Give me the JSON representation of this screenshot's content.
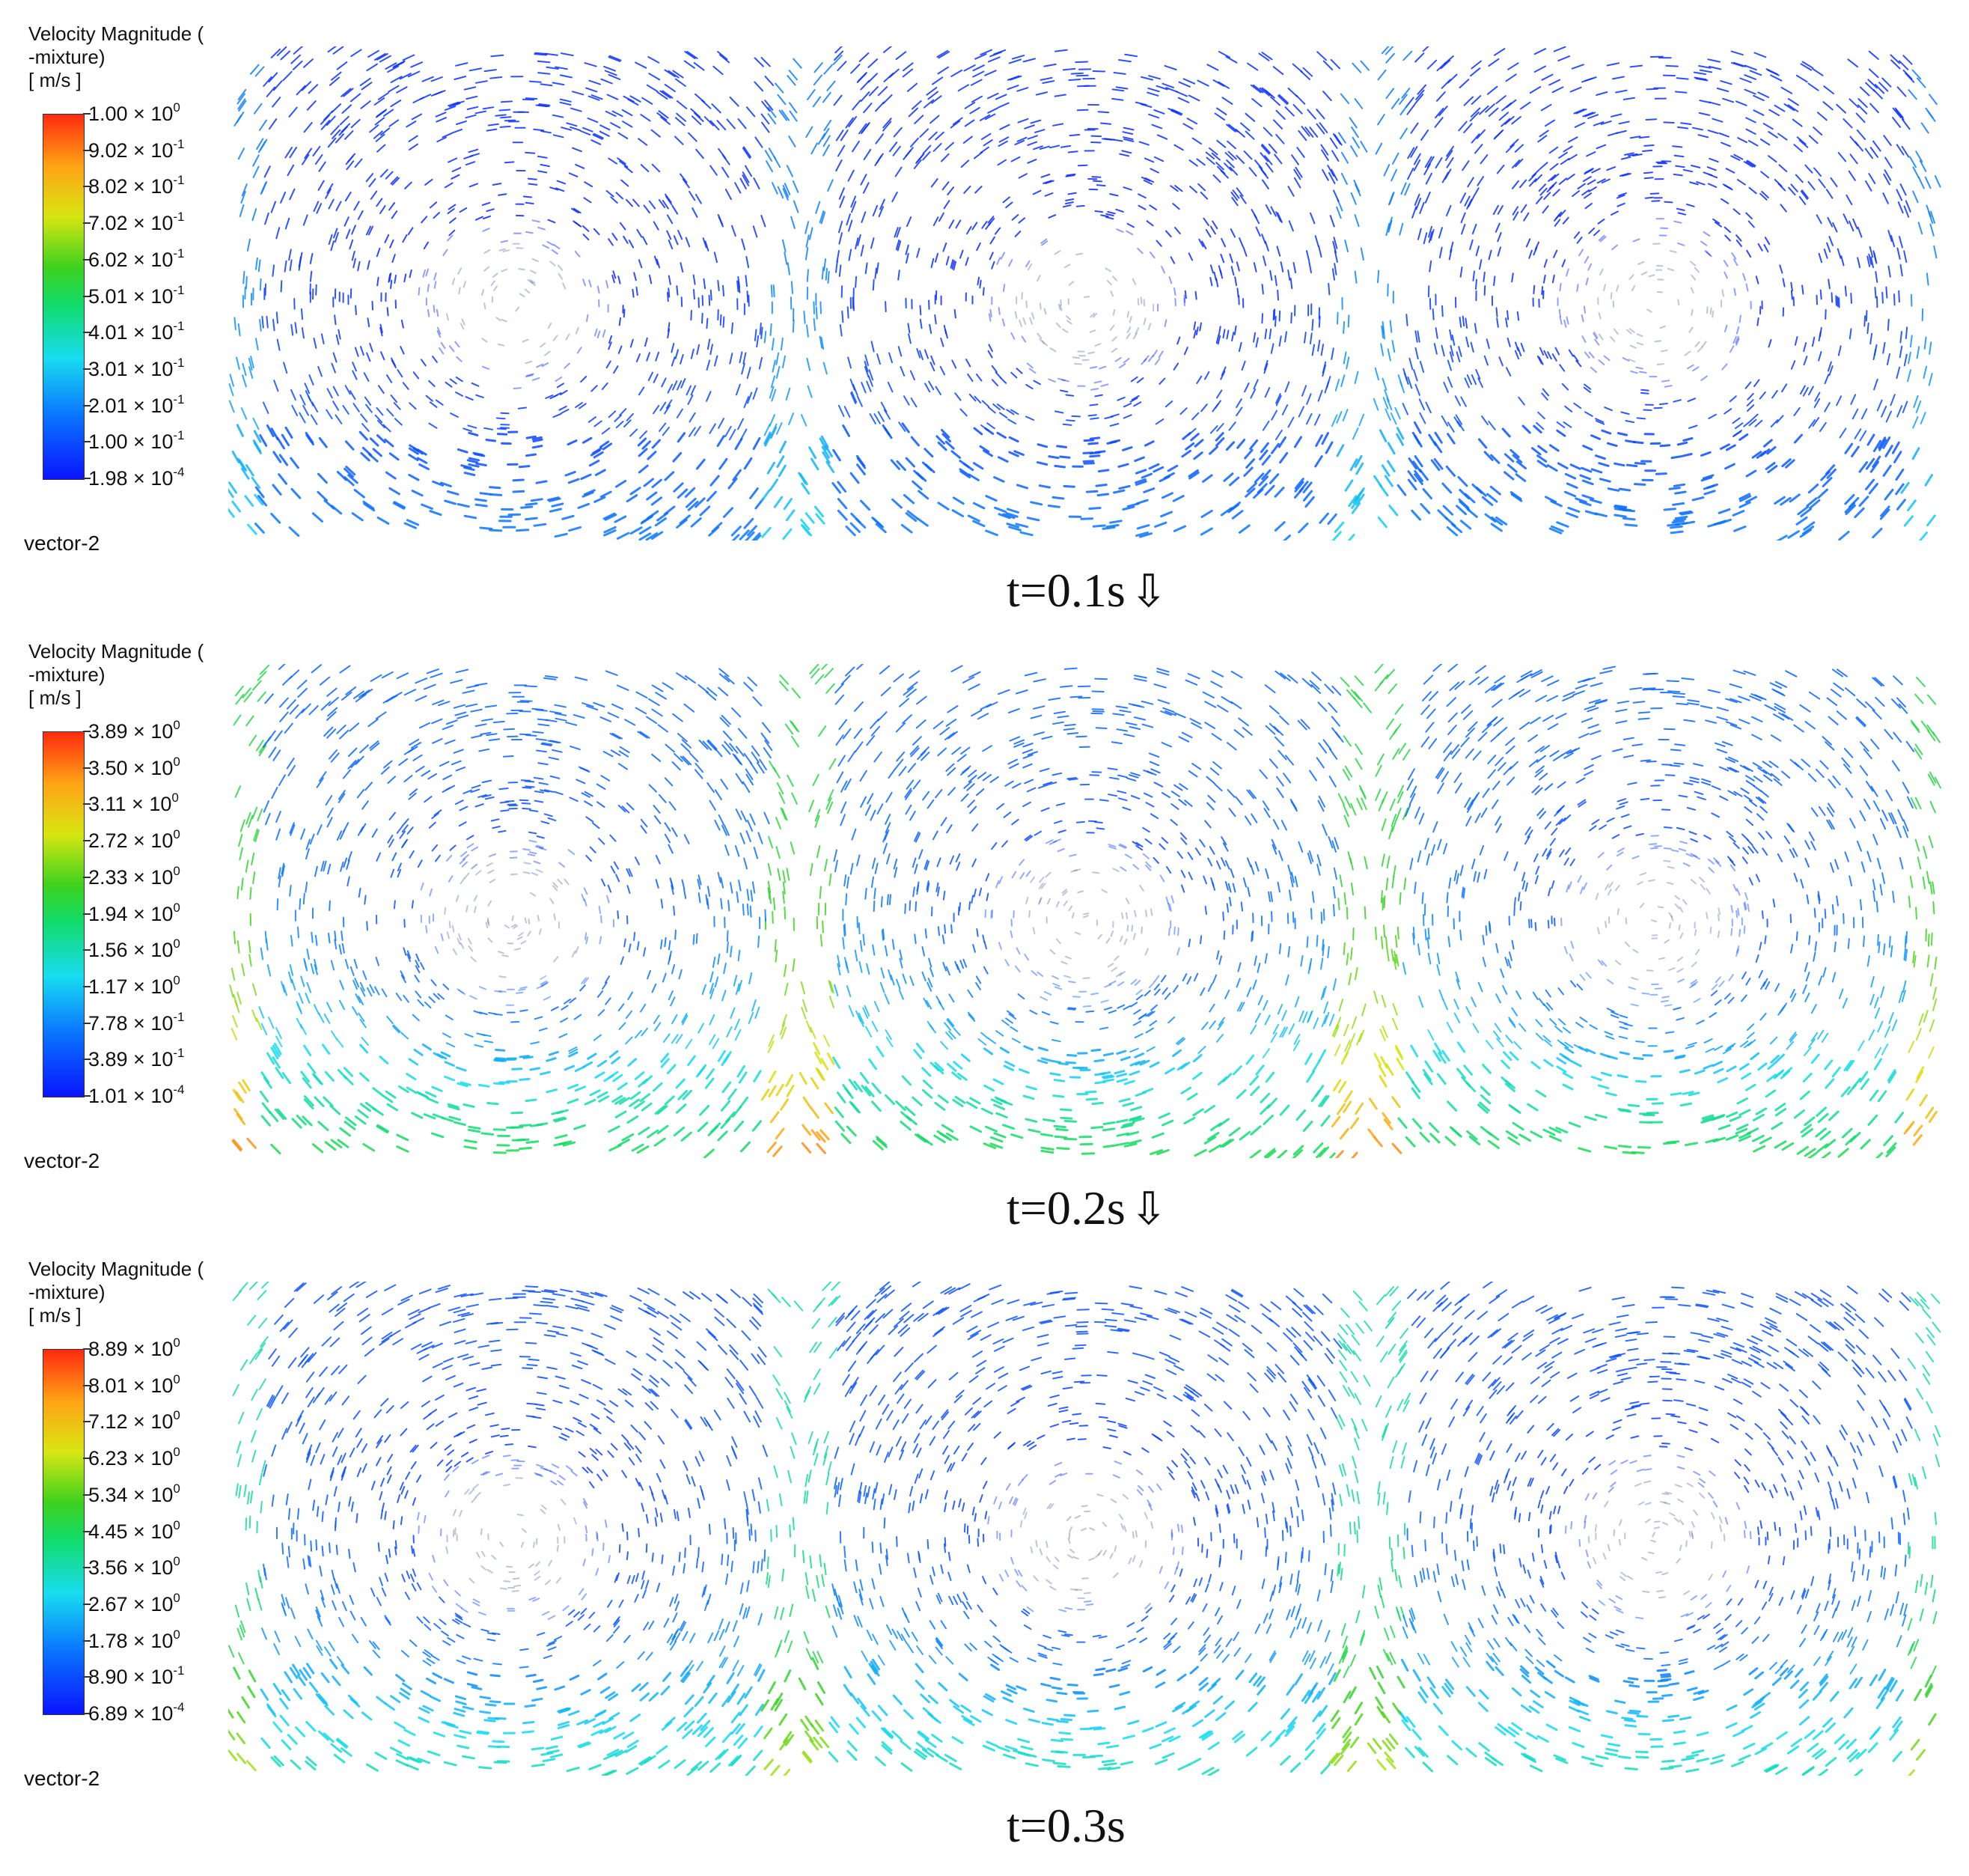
{
  "panels": [
    {
      "legend": {
        "title_line1": "Velocity Magnitude (",
        "title_line2": "-mixture)",
        "units": "[ m/s ]",
        "ticks": [
          {
            "mantissa": "1.00",
            "exp": "0"
          },
          {
            "mantissa": "9.02",
            "exp": "-1"
          },
          {
            "mantissa": "8.02",
            "exp": "-1"
          },
          {
            "mantissa": "7.02",
            "exp": "-1"
          },
          {
            "mantissa": "6.02",
            "exp": "-1"
          },
          {
            "mantissa": "5.01",
            "exp": "-1"
          },
          {
            "mantissa": "4.01",
            "exp": "-1"
          },
          {
            "mantissa": "3.01",
            "exp": "-1"
          },
          {
            "mantissa": "2.01",
            "exp": "-1"
          },
          {
            "mantissa": "1.00",
            "exp": "-1"
          },
          {
            "mantissa": "1.98",
            "exp": "-4"
          }
        ]
      },
      "vector_name": "vector-2",
      "caption": "t=0.1s",
      "caption_arrow": "⇩",
      "intensity": 0.15
    },
    {
      "legend": {
        "title_line1": "Velocity Magnitude (",
        "title_line2": "-mixture)",
        "units": "[ m/s ]",
        "ticks": [
          {
            "mantissa": "3.89",
            "exp": "0"
          },
          {
            "mantissa": "3.50",
            "exp": "0"
          },
          {
            "mantissa": "3.11",
            "exp": "0"
          },
          {
            "mantissa": "2.72",
            "exp": "0"
          },
          {
            "mantissa": "2.33",
            "exp": "0"
          },
          {
            "mantissa": "1.94",
            "exp": "0"
          },
          {
            "mantissa": "1.56",
            "exp": "0"
          },
          {
            "mantissa": "1.17",
            "exp": "0"
          },
          {
            "mantissa": "7.78",
            "exp": "-1"
          },
          {
            "mantissa": "3.89",
            "exp": "-1"
          },
          {
            "mantissa": "1.01",
            "exp": "-4"
          }
        ]
      },
      "vector_name": "vector-2",
      "caption": "t=0.2s",
      "caption_arrow": "⇩",
      "intensity": 0.42
    },
    {
      "legend": {
        "title_line1": "Velocity Magnitude (",
        "title_line2": "-mixture)",
        "units": "[ m/s ]",
        "ticks": [
          {
            "mantissa": "8.89",
            "exp": "0"
          },
          {
            "mantissa": "8.01",
            "exp": "0"
          },
          {
            "mantissa": "7.12",
            "exp": "0"
          },
          {
            "mantissa": "6.23",
            "exp": "0"
          },
          {
            "mantissa": "5.34",
            "exp": "0"
          },
          {
            "mantissa": "4.45",
            "exp": "0"
          },
          {
            "mantissa": "3.56",
            "exp": "0"
          },
          {
            "mantissa": "2.67",
            "exp": "0"
          },
          {
            "mantissa": "1.78",
            "exp": "0"
          },
          {
            "mantissa": "8.90",
            "exp": "-1"
          },
          {
            "mantissa": "6.89",
            "exp": "-4"
          }
        ]
      },
      "vector_name": "vector-2",
      "caption": "t=0.3s",
      "caption_arrow": "",
      "intensity": 0.32
    }
  ]
}
